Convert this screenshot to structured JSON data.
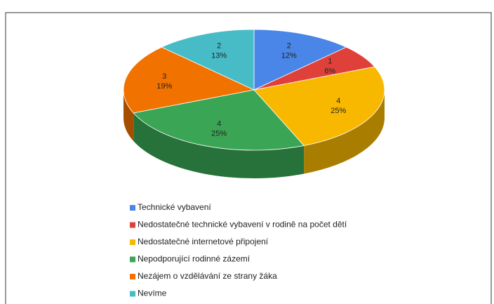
{
  "chart_data": {
    "type": "pie",
    "categories": [
      "Technické vybavení",
      "Nedostatečné technické vybavení v rodině na počet dětí",
      "Nedostatečné internetové připojení",
      "Nepodporující rodinné zázemí",
      "Nezájem o vzdělávání ze strany žáka",
      "Nevíme"
    ],
    "values": [
      2,
      1,
      4,
      4,
      3,
      2
    ],
    "percent_labels": [
      "12%",
      "6%",
      "25%",
      "25%",
      "19%",
      "13%"
    ],
    "colors": [
      "#4a86e8",
      "#e0403a",
      "#f9b800",
      "#3aa655",
      "#f27200",
      "#47bcc6"
    ],
    "legend": "bottom"
  }
}
